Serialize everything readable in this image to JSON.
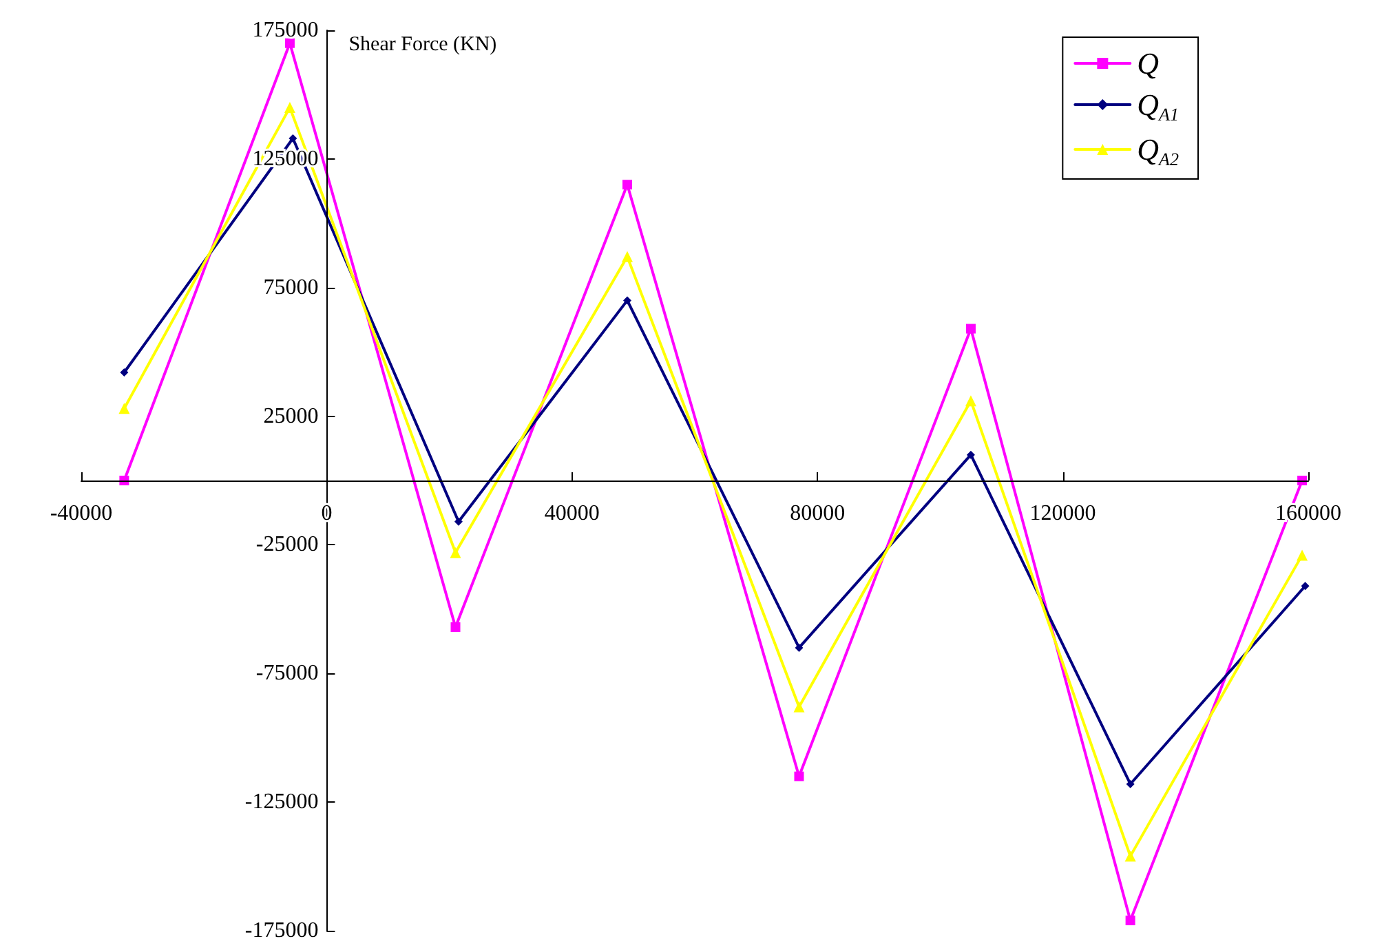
{
  "chart_data": {
    "type": "line",
    "ylabel": "Shear Force (KN)",
    "xlim": [
      -40000,
      160000
    ],
    "xticks": [
      -40000,
      0,
      40000,
      80000,
      120000,
      160000
    ],
    "ylim": [
      -175000,
      175000
    ],
    "yticks": [
      -175000,
      -125000,
      -75000,
      -25000,
      25000,
      75000,
      125000,
      175000
    ],
    "legend": "top right",
    "series": [
      {
        "name": "Q",
        "color": "#ff00ff",
        "marker": "square",
        "x": [
          -33000,
          -6000,
          21000,
          49000,
          77000,
          105000,
          131000,
          159000
        ],
        "values": [
          0,
          170000,
          -57000,
          115000,
          -115000,
          59000,
          -171000,
          0
        ]
      },
      {
        "name": "Q$_{A1}$",
        "color": "#000080",
        "marker": "diamond",
        "x": [
          -33000,
          -5500,
          21500,
          49000,
          77000,
          105000,
          131000,
          159500
        ],
        "values": [
          42000,
          133000,
          -16000,
          70000,
          -65000,
          10000,
          -118000,
          -41000
        ]
      },
      {
        "name": "Q$_{A2}$",
        "color": "#ffff00",
        "marker": "triangle",
        "x": [
          -33000,
          -6000,
          21000,
          49000,
          77000,
          105000,
          131000,
          159000
        ],
        "values": [
          28000,
          145000,
          -28000,
          87000,
          -88000,
          31000,
          -146000,
          -29000
        ]
      }
    ]
  }
}
